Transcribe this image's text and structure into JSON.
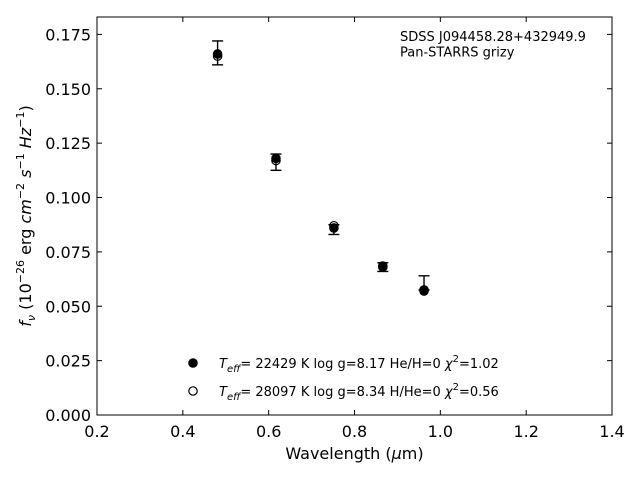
{
  "chart_data": {
    "type": "scatter",
    "title": "",
    "annotations": [
      "SDSS J094458.28+432949.9",
      "Pan-STARRS grizy"
    ],
    "xlabel": "Wavelength (μm)",
    "ylabel": "f_ν (10^-26 erg cm^-2 s^-1 Hz^-1)",
    "xlim": [
      0.2,
      1.4
    ],
    "ylim": [
      0.0,
      0.183
    ],
    "xticks": [
      0.2,
      0.4,
      0.6,
      0.8,
      1.0,
      1.2,
      1.4
    ],
    "xtick_labels": [
      "0.2",
      "0.4",
      "0.6",
      "0.8",
      "1.0",
      "1.2",
      "1.4"
    ],
    "yticks": [
      0.0,
      0.025,
      0.05,
      0.075,
      0.1,
      0.125,
      0.15,
      0.175
    ],
    "ytick_labels": [
      "0.000",
      "0.025",
      "0.050",
      "0.075",
      "0.100",
      "0.125",
      "0.150",
      "0.175"
    ],
    "grid": false,
    "legend_position": "bottom-center",
    "observed": {
      "x": [
        0.481,
        0.617,
        0.752,
        0.866,
        0.962
      ],
      "y": [
        0.1655,
        0.117,
        0.086,
        0.068,
        0.0575
      ],
      "yerr_low": [
        0.0045,
        0.0045,
        0.003,
        0.002,
        0.0
      ],
      "yerr_high": [
        0.0065,
        0.003,
        0.0015,
        0.002,
        0.0065
      ]
    },
    "series": [
      {
        "name": "Teff= 22429 K  log g=8.17  He/H=0  χ²=1.02",
        "marker": "filled-circle",
        "x": [
          0.481,
          0.617,
          0.752,
          0.866,
          0.962
        ],
        "y": [
          0.166,
          0.118,
          0.086,
          0.068,
          0.0575
        ]
      },
      {
        "name": "Teff= 28097 K  log g=8.34  H/He=0  χ²=0.56",
        "marker": "open-circle",
        "x": [
          0.481,
          0.617,
          0.752,
          0.866,
          0.962
        ],
        "y": [
          0.165,
          0.117,
          0.087,
          0.0685,
          0.057
        ]
      }
    ]
  }
}
